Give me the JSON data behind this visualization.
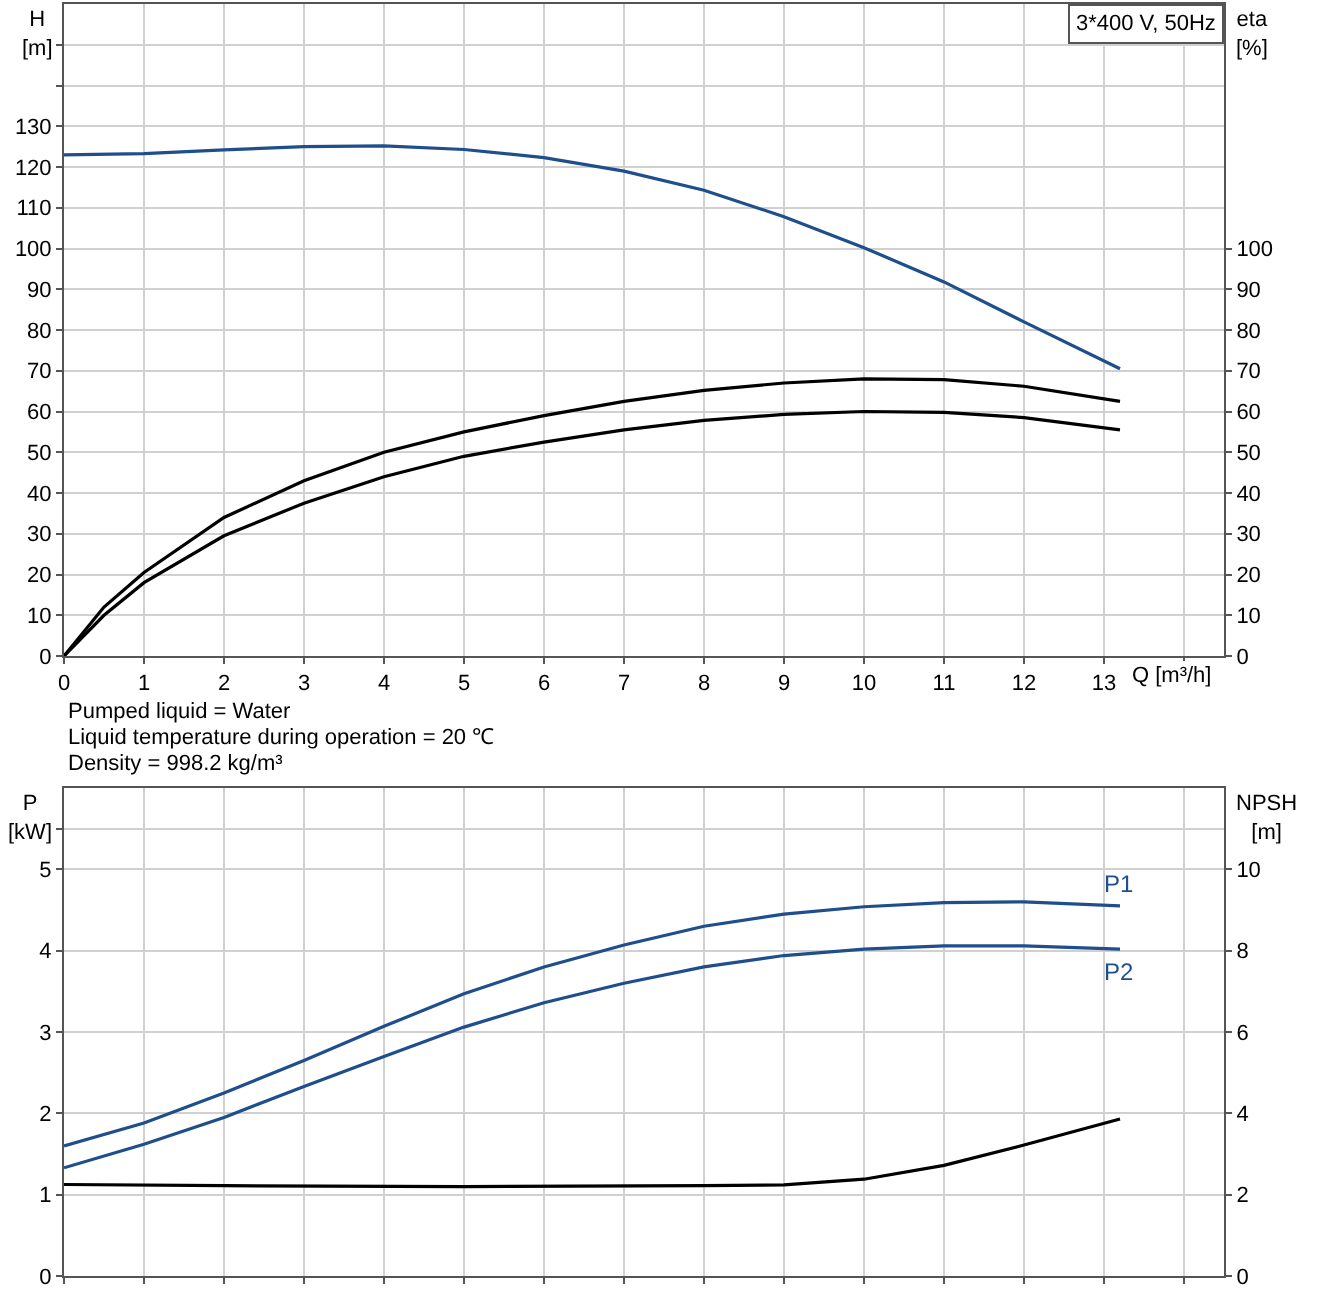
{
  "chart_data": [
    {
      "type": "line",
      "title": "3*400 V, 50Hz",
      "xlabel": "Q [m³/h]",
      "ylabel": "H\n[m]",
      "y2label": "eta\n[%]",
      "grid": true,
      "marker": "none",
      "line_style": "solid",
      "xlim": [
        0,
        14.5
      ],
      "xticks": [
        0,
        1,
        2,
        3,
        4,
        5,
        6,
        7,
        8,
        9,
        10,
        11,
        12,
        13,
        {
          "value": 14,
          "label": null
        }
      ],
      "ylim": [
        0,
        160
      ],
      "yticks": [
        0,
        10,
        20,
        30,
        40,
        50,
        60,
        70,
        80,
        90,
        100,
        110,
        120,
        130,
        {
          "value": 140,
          "label": null
        },
        {
          "value": 150,
          "label": null
        }
      ],
      "y2lim": [
        0,
        160
      ],
      "y2ticks": [
        0,
        10,
        20,
        30,
        40,
        50,
        60,
        70,
        80,
        90,
        100
      ],
      "series": [
        {
          "color": "#1f4e8c",
          "x": [
            0,
            1,
            2,
            3,
            4,
            5,
            6,
            7,
            8,
            9,
            10,
            11,
            12,
            13.2
          ],
          "values": [
            123,
            123.3,
            124.2,
            125,
            125.2,
            124.3,
            122.3,
            119,
            114.3,
            107.8,
            100.2,
            91.8,
            82,
            70.5
          ]
        },
        {
          "color": "#000000",
          "axis": "y2",
          "x": [
            0,
            0.5,
            1,
            2,
            3,
            4,
            5,
            6,
            7,
            8,
            9,
            10,
            11,
            12,
            13.2
          ],
          "values": [
            0,
            12,
            20.5,
            34,
            43,
            50,
            55,
            59,
            62.5,
            65.2,
            67,
            68,
            67.8,
            66.2,
            62.5
          ]
        },
        {
          "color": "#000000",
          "axis": "y2",
          "x": [
            0,
            0.5,
            1,
            2,
            3,
            4,
            5,
            6,
            7,
            8,
            9,
            10,
            11,
            12,
            13.2
          ],
          "values": [
            0,
            10,
            18,
            29.5,
            37.5,
            44,
            49,
            52.5,
            55.5,
            57.8,
            59.3,
            60,
            59.8,
            58.5,
            55.5
          ]
        }
      ]
    },
    {
      "type": "line",
      "ylabel": "P\n[kW]",
      "y2label": "NPSH\n[m]",
      "grid": true,
      "marker": "none",
      "line_style": "solid",
      "tick_labels": "y",
      "annotations": [
        "Pumped liquid = Water",
        "Liquid temperature during operation = 20 ℃",
        "Density = 998.2 kg/m³"
      ],
      "xlim": [
        0,
        14.5
      ],
      "xticks": [
        {
          "value": 0,
          "label": null
        },
        {
          "value": 1,
          "label": null
        },
        {
          "value": 2,
          "label": null
        },
        {
          "value": 3,
          "label": null
        },
        {
          "value": 4,
          "label": null
        },
        {
          "value": 5,
          "label": null
        },
        {
          "value": 6,
          "label": null
        },
        {
          "value": 7,
          "label": null
        },
        {
          "value": 8,
          "label": null
        },
        {
          "value": 9,
          "label": null
        },
        {
          "value": 10,
          "label": null
        },
        {
          "value": 11,
          "label": null
        },
        {
          "value": 12,
          "label": null
        },
        {
          "value": 13,
          "label": null
        },
        {
          "value": 14,
          "label": null
        }
      ],
      "ylim": [
        0,
        6
      ],
      "yticks": [
        0,
        1,
        2,
        3,
        4,
        5,
        {
          "value": 5.5,
          "label": null
        }
      ],
      "y2lim": [
        0,
        12
      ],
      "y2ticks": [
        0,
        2,
        4,
        6,
        8,
        10
      ],
      "series": [
        {
          "name": "P1",
          "color": "#1f4e8c",
          "x": [
            0,
            1,
            2,
            3,
            4,
            5,
            6,
            7,
            8,
            9,
            10,
            11,
            12,
            13.2
          ],
          "values": [
            1.6,
            1.88,
            2.25,
            2.65,
            3.07,
            3.47,
            3.8,
            4.07,
            4.3,
            4.45,
            4.54,
            4.59,
            4.6,
            4.55
          ]
        },
        {
          "name": "P2",
          "color": "#1f4e8c",
          "x": [
            0,
            1,
            2,
            3,
            4,
            5,
            6,
            7,
            8,
            9,
            10,
            11,
            12,
            13.2
          ],
          "values": [
            1.33,
            1.62,
            1.95,
            2.33,
            2.7,
            3.06,
            3.36,
            3.6,
            3.8,
            3.94,
            4.02,
            4.06,
            4.06,
            4.02
          ]
        },
        {
          "color": "#000000",
          "axis": "y2",
          "x": [
            0,
            2,
            5,
            8,
            9,
            10,
            11,
            12,
            13.2
          ],
          "values": [
            2.25,
            2.22,
            2.2,
            2.22,
            2.24,
            2.38,
            2.72,
            3.22,
            3.86
          ]
        }
      ]
    }
  ]
}
